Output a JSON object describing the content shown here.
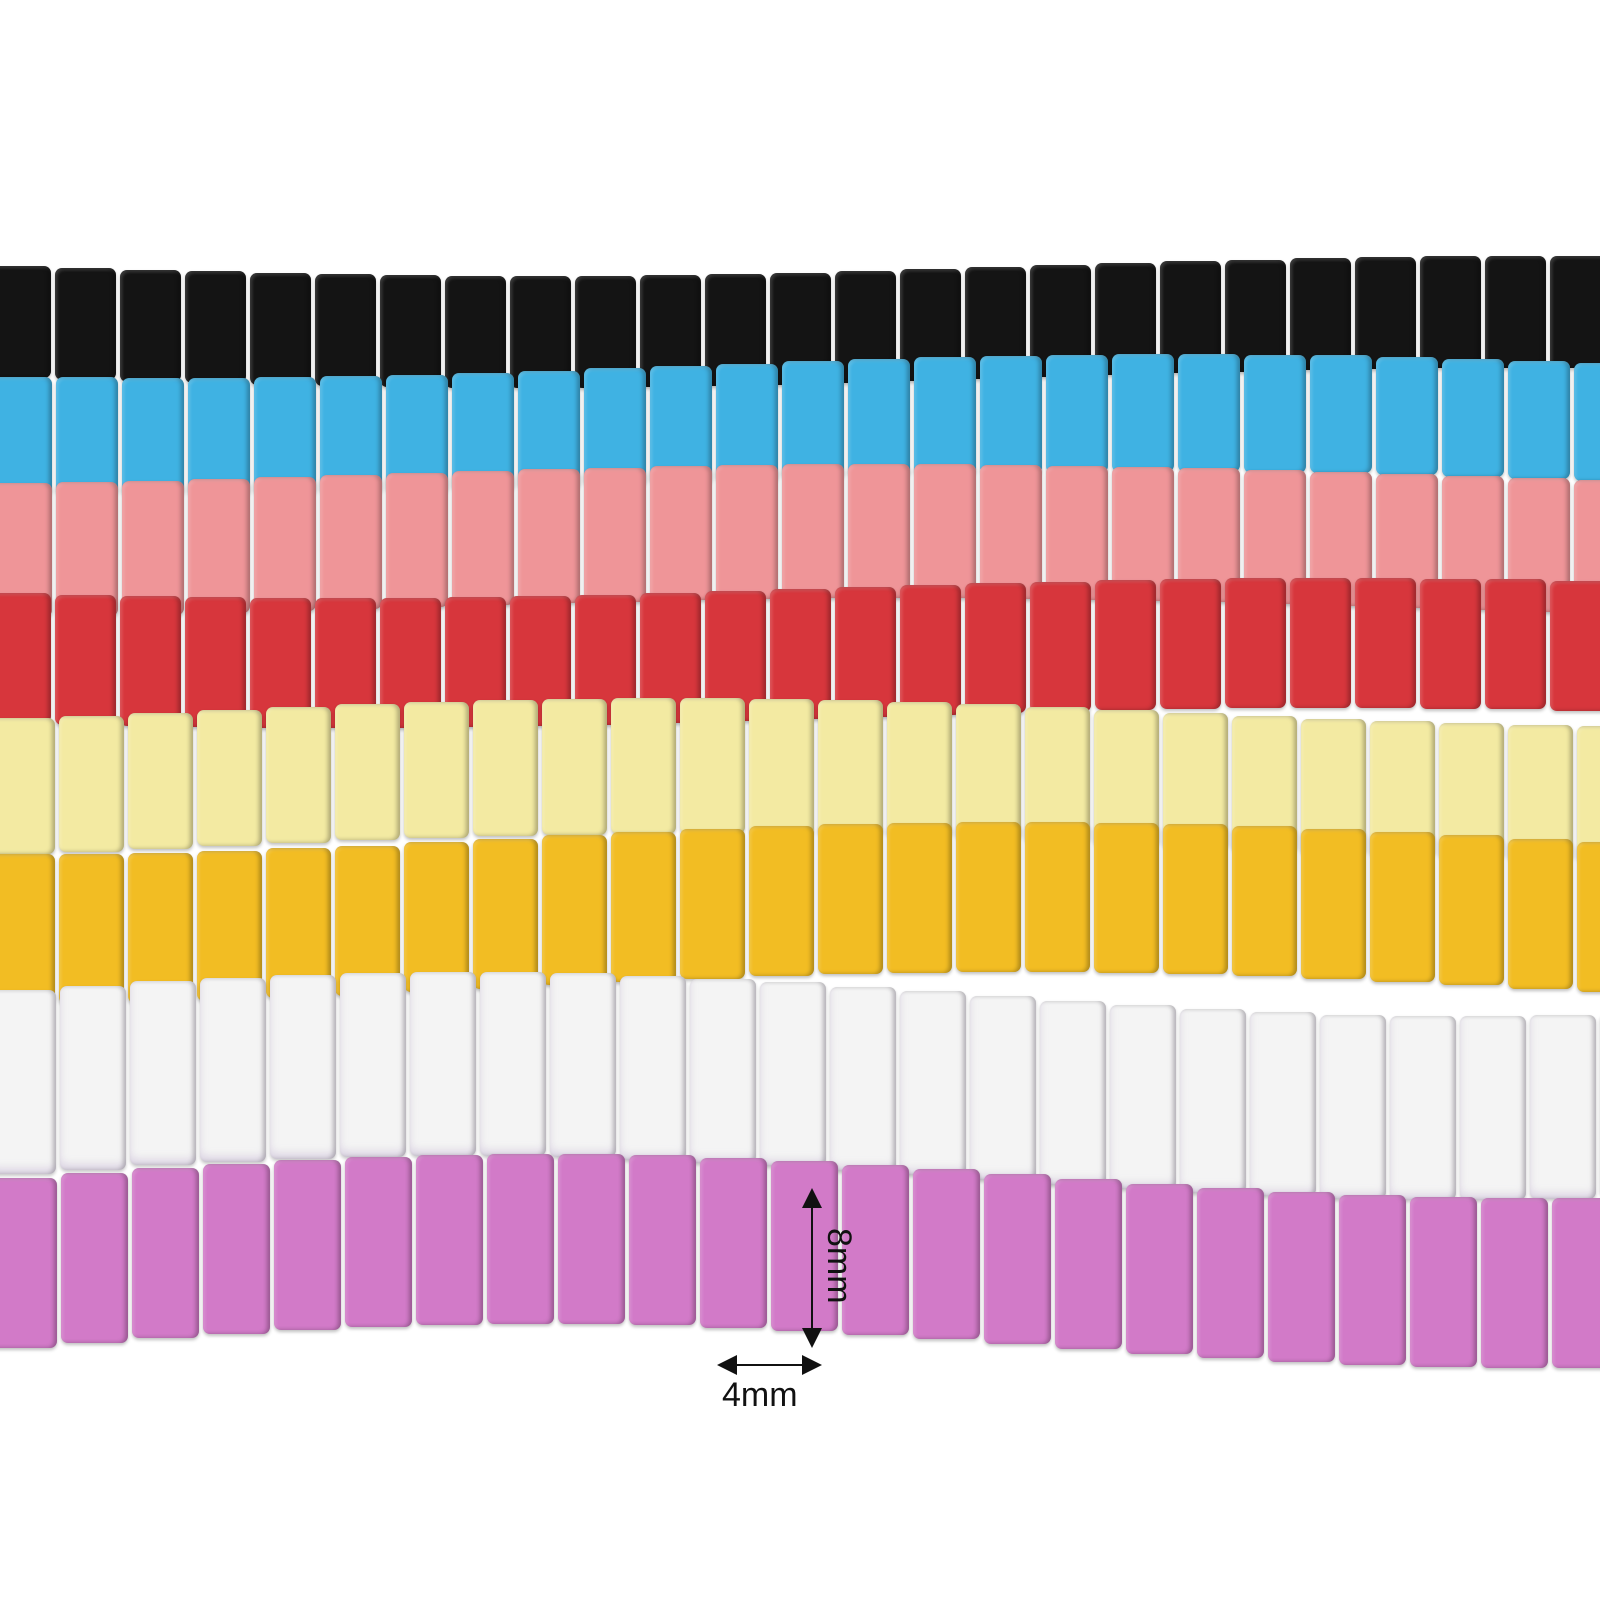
{
  "strands": [
    {
      "name": "black",
      "color": "#141414"
    },
    {
      "name": "sky-blue",
      "color": "#3fb2e3"
    },
    {
      "name": "pink",
      "color": "#ef9598"
    },
    {
      "name": "red",
      "color": "#d7363c"
    },
    {
      "name": "pale-yellow",
      "color": "#f3eaa2"
    },
    {
      "name": "mustard-yellow",
      "color": "#f2bd23"
    },
    {
      "name": "white",
      "color": "#f4f4f4"
    },
    {
      "name": "orchid",
      "color": "#d27ac8"
    }
  ],
  "dimensions": {
    "length_label": "8mm",
    "width_label": "4mm"
  }
}
